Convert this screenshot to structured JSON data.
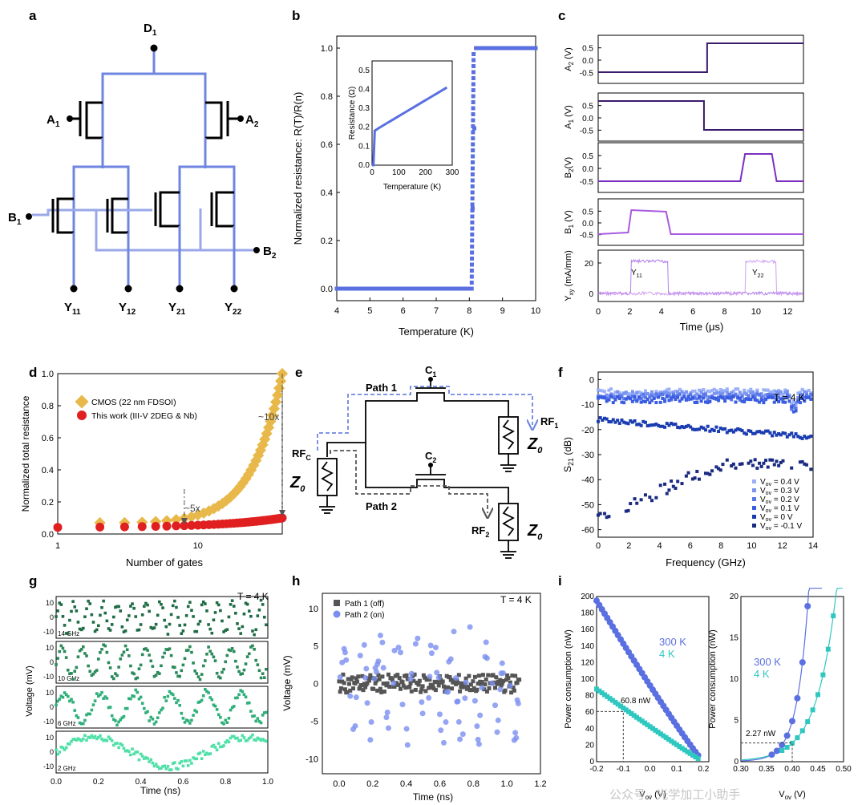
{
  "panels": {
    "a": "a",
    "b": "b",
    "c": "c",
    "d": "d",
    "e": "e",
    "f": "f",
    "g": "g",
    "h": "h",
    "i": "i"
  },
  "a": {
    "D": "D",
    "D_sub": "1",
    "A1": "A",
    "A1_sub": "1",
    "A2": "A",
    "A2_sub": "2",
    "B1": "B",
    "B1_sub": "1",
    "B2": "B",
    "B2_sub": "2",
    "outputs": [
      "Y",
      "Y",
      "Y",
      "Y"
    ],
    "out_subs": [
      "11",
      "12",
      "21",
      "22"
    ]
  },
  "colors": {
    "wire": "#6f86e0",
    "wire2": "#9aa8e8",
    "blue": "#5a6fe0",
    "orange": "#e8b84a",
    "red": "#e02020",
    "purple_dark": "#3a1a6a",
    "purple": "#7a2fc0",
    "purple_light": "#a85ae0",
    "navy": "#1a2a80",
    "green1": "#1f6b45",
    "green2": "#2a8a5a",
    "green3": "#2fb07a",
    "green4": "#4fe0a8",
    "gray": "#555555",
    "teal": "#2fc8c0"
  },
  "b": {
    "ylabel": "Normalized resistance: R(T)/R(n)",
    "xlabel": "Temperature (K)",
    "xticks": [
      "4",
      "5",
      "6",
      "7",
      "8",
      "9",
      "10"
    ],
    "yticks": [
      "0.0",
      "0.2",
      "0.4",
      "0.6",
      "0.8",
      "1.0"
    ],
    "inset": {
      "ylabel": "Resistance (Ω)",
      "xlabel": "Temperature (K)",
      "xticks": [
        "0",
        "100",
        "200",
        "300"
      ],
      "yticks": [
        "0.0",
        "0.1",
        "0.2",
        "0.3",
        "0.4",
        "0.5"
      ]
    }
  },
  "c": {
    "rows": [
      {
        "label": "A",
        "sub": "2",
        "unit": " (V)",
        "ticks": [
          "0.5",
          "0.0",
          "-0.5"
        ]
      },
      {
        "label": "A",
        "sub": "1",
        "unit": " (V)",
        "ticks": [
          "0.5",
          "0.0",
          "-0.5"
        ]
      },
      {
        "label": "B",
        "sub": "2",
        "unit": "(V)",
        "ticks": [
          "0.5",
          "0.0",
          "-0.5"
        ]
      },
      {
        "label": "B",
        "sub": "1",
        "unit": " (V)",
        "ticks": [
          "0.5",
          "0.0",
          "-0.5"
        ]
      },
      {
        "label": "Y",
        "sub": "xy",
        "unit": " (mA/mm)",
        "ticks": [
          "20",
          "0"
        ]
      }
    ],
    "xlabel": "Time (μs)",
    "xticks": [
      "0",
      "2",
      "4",
      "6",
      "8",
      "10",
      "12"
    ],
    "y11": "Y",
    "y11_sub": "11",
    "y22": "Y",
    "y22_sub": "22"
  },
  "d": {
    "ylabel": "Normalized total resistance",
    "xlabel": "Number of gates",
    "xticks": [
      "1",
      "10"
    ],
    "yticks": [
      "0.0",
      "0.2",
      "0.4",
      "0.6",
      "0.8",
      "1.0"
    ],
    "legend": [
      "CMOS (22 nm FDSOI)",
      "This work (III-V 2DEG & Nb)"
    ],
    "ann10": "~10x",
    "ann5": "~5x"
  },
  "e": {
    "path1": "Path 1",
    "path2": "Path 2",
    "C1": "C",
    "C1_sub": "1",
    "C2": "C",
    "C2_sub": "2",
    "RFc": "RF",
    "RFc_sub": "C",
    "RF1": "RF",
    "RF1_sub": "1",
    "RF2": "RF",
    "RF2_sub": "2",
    "Z": "Z",
    "Z_sub": "0"
  },
  "f": {
    "ylabel": "S",
    "ylabel_sub": "21",
    "ylabel_unit": " (dB)",
    "xlabel": "Frequency (GHz)",
    "temp": "T = 4 K",
    "xticks": [
      "0",
      "2",
      "4",
      "6",
      "8",
      "10",
      "12",
      "14"
    ],
    "yticks": [
      "0",
      "-10",
      "-20",
      "-30",
      "-40",
      "-50",
      "-60"
    ],
    "legend": [
      "= 0.4 V",
      "= 0.3 V",
      "= 0.2 V",
      "= 0.1 V",
      "= 0 V",
      "= -0.1 V"
    ],
    "legend_v": "V",
    "legend_sub": "ov"
  },
  "g": {
    "ylabel": "Voltage (mV)",
    "xlabel": "Time (ns)",
    "temp": "T = 4 K",
    "freqs": [
      "14 GHz",
      "10 GHz",
      "6 GHz",
      "2 GHz"
    ],
    "xticks": [
      "0.0",
      "0.2",
      "0.4",
      "0.6",
      "0.8",
      "1.0"
    ],
    "yticks": [
      "10",
      "0",
      "-10"
    ]
  },
  "h": {
    "ylabel": "Voltage (mV)",
    "xlabel": "Time (ns)",
    "temp": "T = 4 K",
    "legend": [
      "Path 1 (off)",
      "Path 2 (on)"
    ],
    "xticks": [
      "0.0",
      "0.2",
      "0.4",
      "0.6",
      "0.8",
      "1.0",
      "1.2"
    ],
    "yticks": [
      "10",
      "5",
      "0",
      "-5",
      "-10"
    ]
  },
  "i": {
    "left": {
      "ylabel": "Power consumption (nW)",
      "xlabel": "V",
      "xlabel_sub": "ov",
      "xlabel_unit": " (V)",
      "xticks": [
        "-0.2",
        "-0.1",
        "0.0",
        "0.1",
        "0.2"
      ],
      "yticks": [
        "0",
        "20",
        "40",
        "60",
        "80",
        "100",
        "120",
        "140",
        "160",
        "180",
        "200"
      ],
      "ann": "60.8 nW",
      "l300": "300 K",
      "l4": "4 K"
    },
    "right": {
      "ylabel": "Power consumption (nW)",
      "xlabel": "V",
      "xlabel_sub": "ov",
      "xlabel_unit": " (V)",
      "xticks": [
        "0.30",
        "0.35",
        "0.40",
        "0.45",
        "0.50"
      ],
      "yticks": [
        "0",
        "5",
        "10",
        "15",
        "20"
      ],
      "ann": "2.27 nW",
      "l300": "300 K",
      "l4": "4 K"
    }
  },
  "watermark": "公众号 · 光学加工小助手"
}
